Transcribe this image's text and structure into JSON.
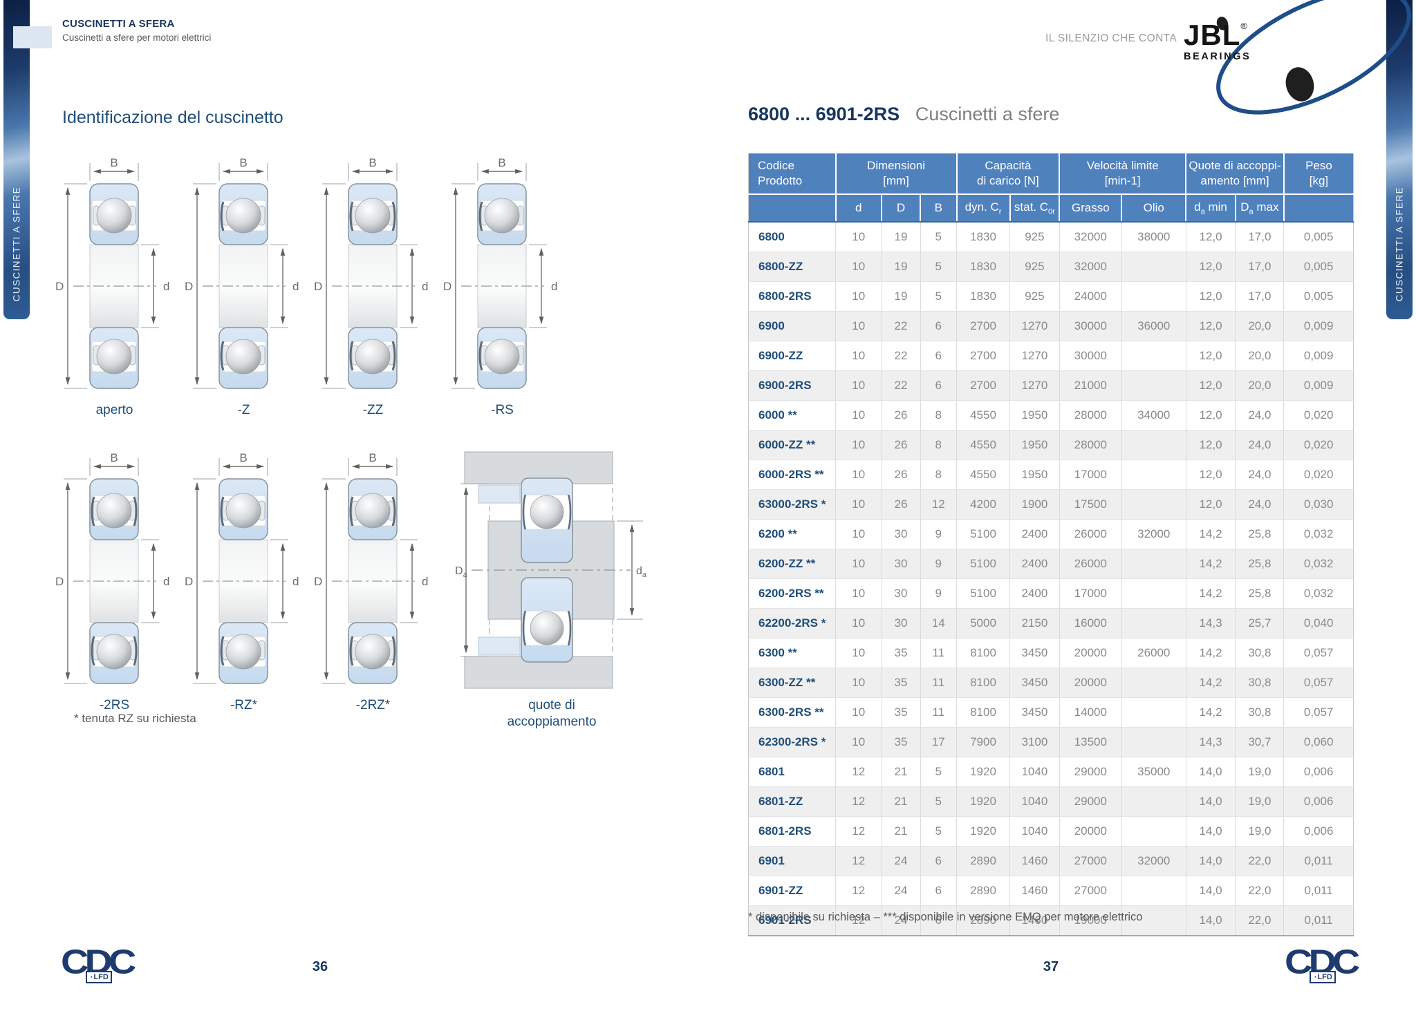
{
  "sidebar": {
    "left_tab": "CUSCINETTI A SFERE",
    "right_tab": "CUSCINETTI A SFERE"
  },
  "header": {
    "title": "CUSCINETTI A SFERA",
    "subtitle": "Cuscinetti a sfere per motori elettrici"
  },
  "brand": {
    "tagline": "IL SILENZIO CHE CONTA",
    "name": "JBL",
    "registered": "®",
    "subname": "BEARINGS"
  },
  "left_page": {
    "title": "Identificazione del cuscinetto",
    "dim_labels": {
      "B": "B",
      "D": "D",
      "d": "d",
      "Da_main": "D",
      "Da_sub": "a",
      "da_main": "d",
      "da_sub": "a"
    },
    "diagrams": [
      {
        "label": "aperto"
      },
      {
        "label": "-Z"
      },
      {
        "label": "-ZZ"
      },
      {
        "label": "-RS"
      },
      {
        "label": "-2RS"
      },
      {
        "label": "-RZ*"
      },
      {
        "label": "-2RZ*"
      }
    ],
    "mount_label_line1": "quote di",
    "mount_label_line2": "accoppiamento",
    "footnote": "* tenuta RZ su richiesta",
    "page_number": "36"
  },
  "right_page": {
    "title_code": "6800 ... 6901-2RS",
    "title_text": "Cuscinetti a sfere",
    "table": {
      "group_headers": [
        {
          "line1": "Codice",
          "line2": "Prodotto",
          "span": 1
        },
        {
          "line1": "Dimensioni",
          "line2": "[mm]",
          "span": 3
        },
        {
          "line1": "Capacità",
          "line2": "di carico [N]",
          "span": 2
        },
        {
          "line1": "Velocità limite",
          "line2": "[min-1]",
          "span": 2
        },
        {
          "line1": "Quote di accoppi-",
          "line2": "amento [mm]",
          "span": 2
        },
        {
          "line1": "Peso",
          "line2": "[kg]",
          "span": 1
        }
      ],
      "sub_headers": [
        {
          "pre": ""
        },
        {
          "pre": "d"
        },
        {
          "pre": "D"
        },
        {
          "pre": "B"
        },
        {
          "pre": "dyn. C",
          "sub": "r"
        },
        {
          "pre": "stat. C",
          "sub": "0r"
        },
        {
          "pre": "Grasso"
        },
        {
          "pre": "Olio"
        },
        {
          "pre": "d",
          "sub": "a",
          "post": " min"
        },
        {
          "pre": "D",
          "sub": "a",
          "post": " max"
        },
        {
          "pre": ""
        }
      ],
      "rows": [
        {
          "code": "6800",
          "values": [
            "10",
            "19",
            "5",
            "1830",
            "925",
            "32000",
            "38000",
            "12,0",
            "17,0",
            "0,005"
          ]
        },
        {
          "code": "6800-ZZ",
          "values": [
            "10",
            "19",
            "5",
            "1830",
            "925",
            "32000",
            "",
            "12,0",
            "17,0",
            "0,005"
          ]
        },
        {
          "code": "6800-2RS",
          "values": [
            "10",
            "19",
            "5",
            "1830",
            "925",
            "24000",
            "",
            "12,0",
            "17,0",
            "0,005"
          ]
        },
        {
          "code": "6900",
          "values": [
            "10",
            "22",
            "6",
            "2700",
            "1270",
            "30000",
            "36000",
            "12,0",
            "20,0",
            "0,009"
          ]
        },
        {
          "code": "6900-ZZ",
          "values": [
            "10",
            "22",
            "6",
            "2700",
            "1270",
            "30000",
            "",
            "12,0",
            "20,0",
            "0,009"
          ]
        },
        {
          "code": "6900-2RS",
          "values": [
            "10",
            "22",
            "6",
            "2700",
            "1270",
            "21000",
            "",
            "12,0",
            "20,0",
            "0,009"
          ]
        },
        {
          "code": "6000 **",
          "values": [
            "10",
            "26",
            "8",
            "4550",
            "1950",
            "28000",
            "34000",
            "12,0",
            "24,0",
            "0,020"
          ]
        },
        {
          "code": "6000-ZZ **",
          "values": [
            "10",
            "26",
            "8",
            "4550",
            "1950",
            "28000",
            "",
            "12,0",
            "24,0",
            "0,020"
          ]
        },
        {
          "code": "6000-2RS **",
          "values": [
            "10",
            "26",
            "8",
            "4550",
            "1950",
            "17000",
            "",
            "12,0",
            "24,0",
            "0,020"
          ]
        },
        {
          "code": "63000-2RS *",
          "values": [
            "10",
            "26",
            "12",
            "4200",
            "1900",
            "17500",
            "",
            "12,0",
            "24,0",
            "0,030"
          ]
        },
        {
          "code": "6200 **",
          "values": [
            "10",
            "30",
            "9",
            "5100",
            "2400",
            "26000",
            "32000",
            "14,2",
            "25,8",
            "0,032"
          ]
        },
        {
          "code": "6200-ZZ **",
          "values": [
            "10",
            "30",
            "9",
            "5100",
            "2400",
            "26000",
            "",
            "14,2",
            "25,8",
            "0,032"
          ]
        },
        {
          "code": "6200-2RS **",
          "values": [
            "10",
            "30",
            "9",
            "5100",
            "2400",
            "17000",
            "",
            "14,2",
            "25,8",
            "0,032"
          ]
        },
        {
          "code": "62200-2RS *",
          "values": [
            "10",
            "30",
            "14",
            "5000",
            "2150",
            "16000",
            "",
            "14,3",
            "25,7",
            "0,040"
          ]
        },
        {
          "code": "6300 **",
          "values": [
            "10",
            "35",
            "11",
            "8100",
            "3450",
            "20000",
            "26000",
            "14,2",
            "30,8",
            "0,057"
          ]
        },
        {
          "code": "6300-ZZ **",
          "values": [
            "10",
            "35",
            "11",
            "8100",
            "3450",
            "20000",
            "",
            "14,2",
            "30,8",
            "0,057"
          ]
        },
        {
          "code": "6300-2RS **",
          "values": [
            "10",
            "35",
            "11",
            "8100",
            "3450",
            "14000",
            "",
            "14,2",
            "30,8",
            "0,057"
          ]
        },
        {
          "code": "62300-2RS *",
          "values": [
            "10",
            "35",
            "17",
            "7900",
            "3100",
            "13500",
            "",
            "14,3",
            "30,7",
            "0,060"
          ]
        },
        {
          "code": "6801",
          "values": [
            "12",
            "21",
            "5",
            "1920",
            "1040",
            "29000",
            "35000",
            "14,0",
            "19,0",
            "0,006"
          ]
        },
        {
          "code": "6801-ZZ",
          "values": [
            "12",
            "21",
            "5",
            "1920",
            "1040",
            "29000",
            "",
            "14,0",
            "19,0",
            "0,006"
          ]
        },
        {
          "code": "6801-2RS",
          "values": [
            "12",
            "21",
            "5",
            "1920",
            "1040",
            "20000",
            "",
            "14,0",
            "19,0",
            "0,006"
          ]
        },
        {
          "code": "6901",
          "values": [
            "12",
            "24",
            "6",
            "2890",
            "1460",
            "27000",
            "32000",
            "14,0",
            "22,0",
            "0,011"
          ]
        },
        {
          "code": "6901-ZZ",
          "values": [
            "12",
            "24",
            "6",
            "2890",
            "1460",
            "27000",
            "",
            "14,0",
            "22,0",
            "0,011"
          ]
        },
        {
          "code": "6901-2RS",
          "values": [
            "12",
            "24",
            "6",
            "2890",
            "1460",
            "19000",
            "",
            "14,0",
            "22,0",
            "0,011"
          ]
        }
      ]
    },
    "footnote": "* disponibile su richiesta  –  *** disponibile in versione EMQ per motore elettrico",
    "page_number": "37"
  },
  "footer": {
    "cdc": "CDC",
    "cdc_sub": "LFD"
  },
  "colors": {
    "accent_blue": "#4f81bd",
    "navy": "#17365d",
    "code_blue": "#1f4e79",
    "row_alt": "#efefef",
    "diagram_blue": "#cfe0f1"
  }
}
